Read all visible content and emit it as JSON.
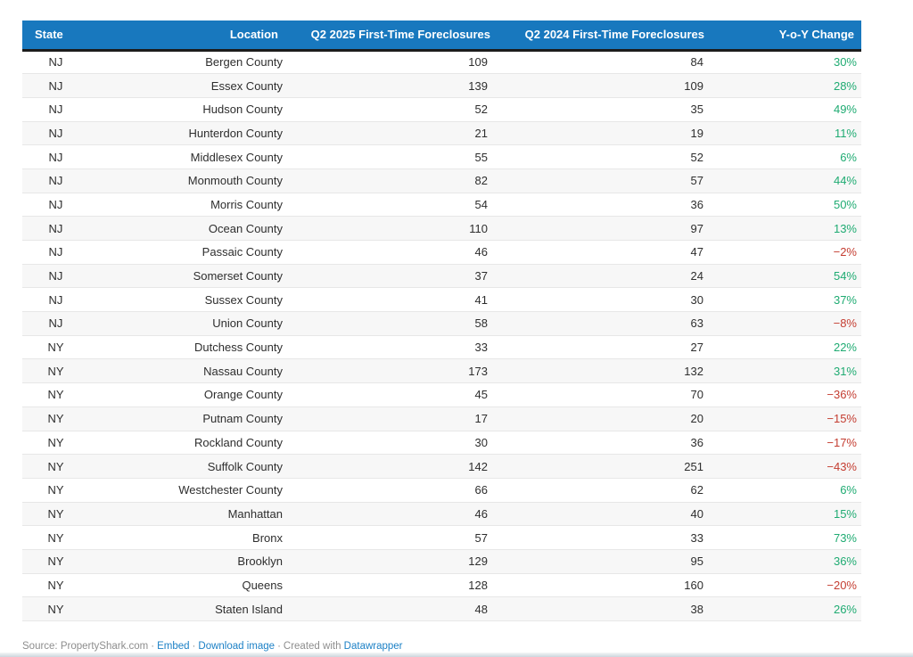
{
  "chart_data": {
    "type": "table",
    "columns": [
      "State",
      "Location",
      "Q2 2025 First-Time Foreclosures",
      "Q2 2024 First-Time Foreclosures",
      "Y-o-Y Change"
    ],
    "rows": [
      [
        "NJ",
        "Bergen County",
        109,
        84,
        "30%"
      ],
      [
        "NJ",
        "Essex County",
        139,
        109,
        "28%"
      ],
      [
        "NJ",
        "Hudson County",
        52,
        35,
        "49%"
      ],
      [
        "NJ",
        "Hunterdon County",
        21,
        19,
        "11%"
      ],
      [
        "NJ",
        "Middlesex County",
        55,
        52,
        "6%"
      ],
      [
        "NJ",
        "Monmouth County",
        82,
        57,
        "44%"
      ],
      [
        "NJ",
        "Morris County",
        54,
        36,
        "50%"
      ],
      [
        "NJ",
        "Ocean County",
        110,
        97,
        "13%"
      ],
      [
        "NJ",
        "Passaic County",
        46,
        47,
        "−2%"
      ],
      [
        "NJ",
        "Somerset County",
        37,
        24,
        "54%"
      ],
      [
        "NJ",
        "Sussex County",
        41,
        30,
        "37%"
      ],
      [
        "NJ",
        "Union County",
        58,
        63,
        "−8%"
      ],
      [
        "NY",
        "Dutchess County",
        33,
        27,
        "22%"
      ],
      [
        "NY",
        "Nassau County",
        173,
        132,
        "31%"
      ],
      [
        "NY",
        "Orange County",
        45,
        70,
        "−36%"
      ],
      [
        "NY",
        "Putnam County",
        17,
        20,
        "−15%"
      ],
      [
        "NY",
        "Rockland County",
        30,
        36,
        "−17%"
      ],
      [
        "NY",
        "Suffolk County",
        142,
        251,
        "−43%"
      ],
      [
        "NY",
        "Westchester County",
        66,
        62,
        "6%"
      ],
      [
        "NY",
        "Manhattan",
        46,
        40,
        "15%"
      ],
      [
        "NY",
        "Bronx",
        57,
        33,
        "73%"
      ],
      [
        "NY",
        "Brooklyn",
        129,
        95,
        "36%"
      ],
      [
        "NY",
        "Queens",
        128,
        160,
        "−20%"
      ],
      [
        "NY",
        "Staten Island",
        48,
        38,
        "26%"
      ]
    ],
    "layout_hints": {
      "striped_rows": true,
      "header_style": "solid-fill",
      "negative_prefix": "−"
    }
  },
  "footer": {
    "source_text": "Source: PropertyShark.com",
    "separator": "·",
    "embed_label": "Embed",
    "download_label": "Download image",
    "created_with_label": "Created with",
    "datawrapper_label": "Datawrapper"
  },
  "colors": {
    "header_background": "#1878be",
    "header_text": "#ffffff",
    "positive_change": "#1fab72",
    "negative_change": "#c43d31",
    "link": "#1d81c6",
    "stripe_row": "#f7f7f7",
    "header_underline": "#1c1c1c"
  }
}
